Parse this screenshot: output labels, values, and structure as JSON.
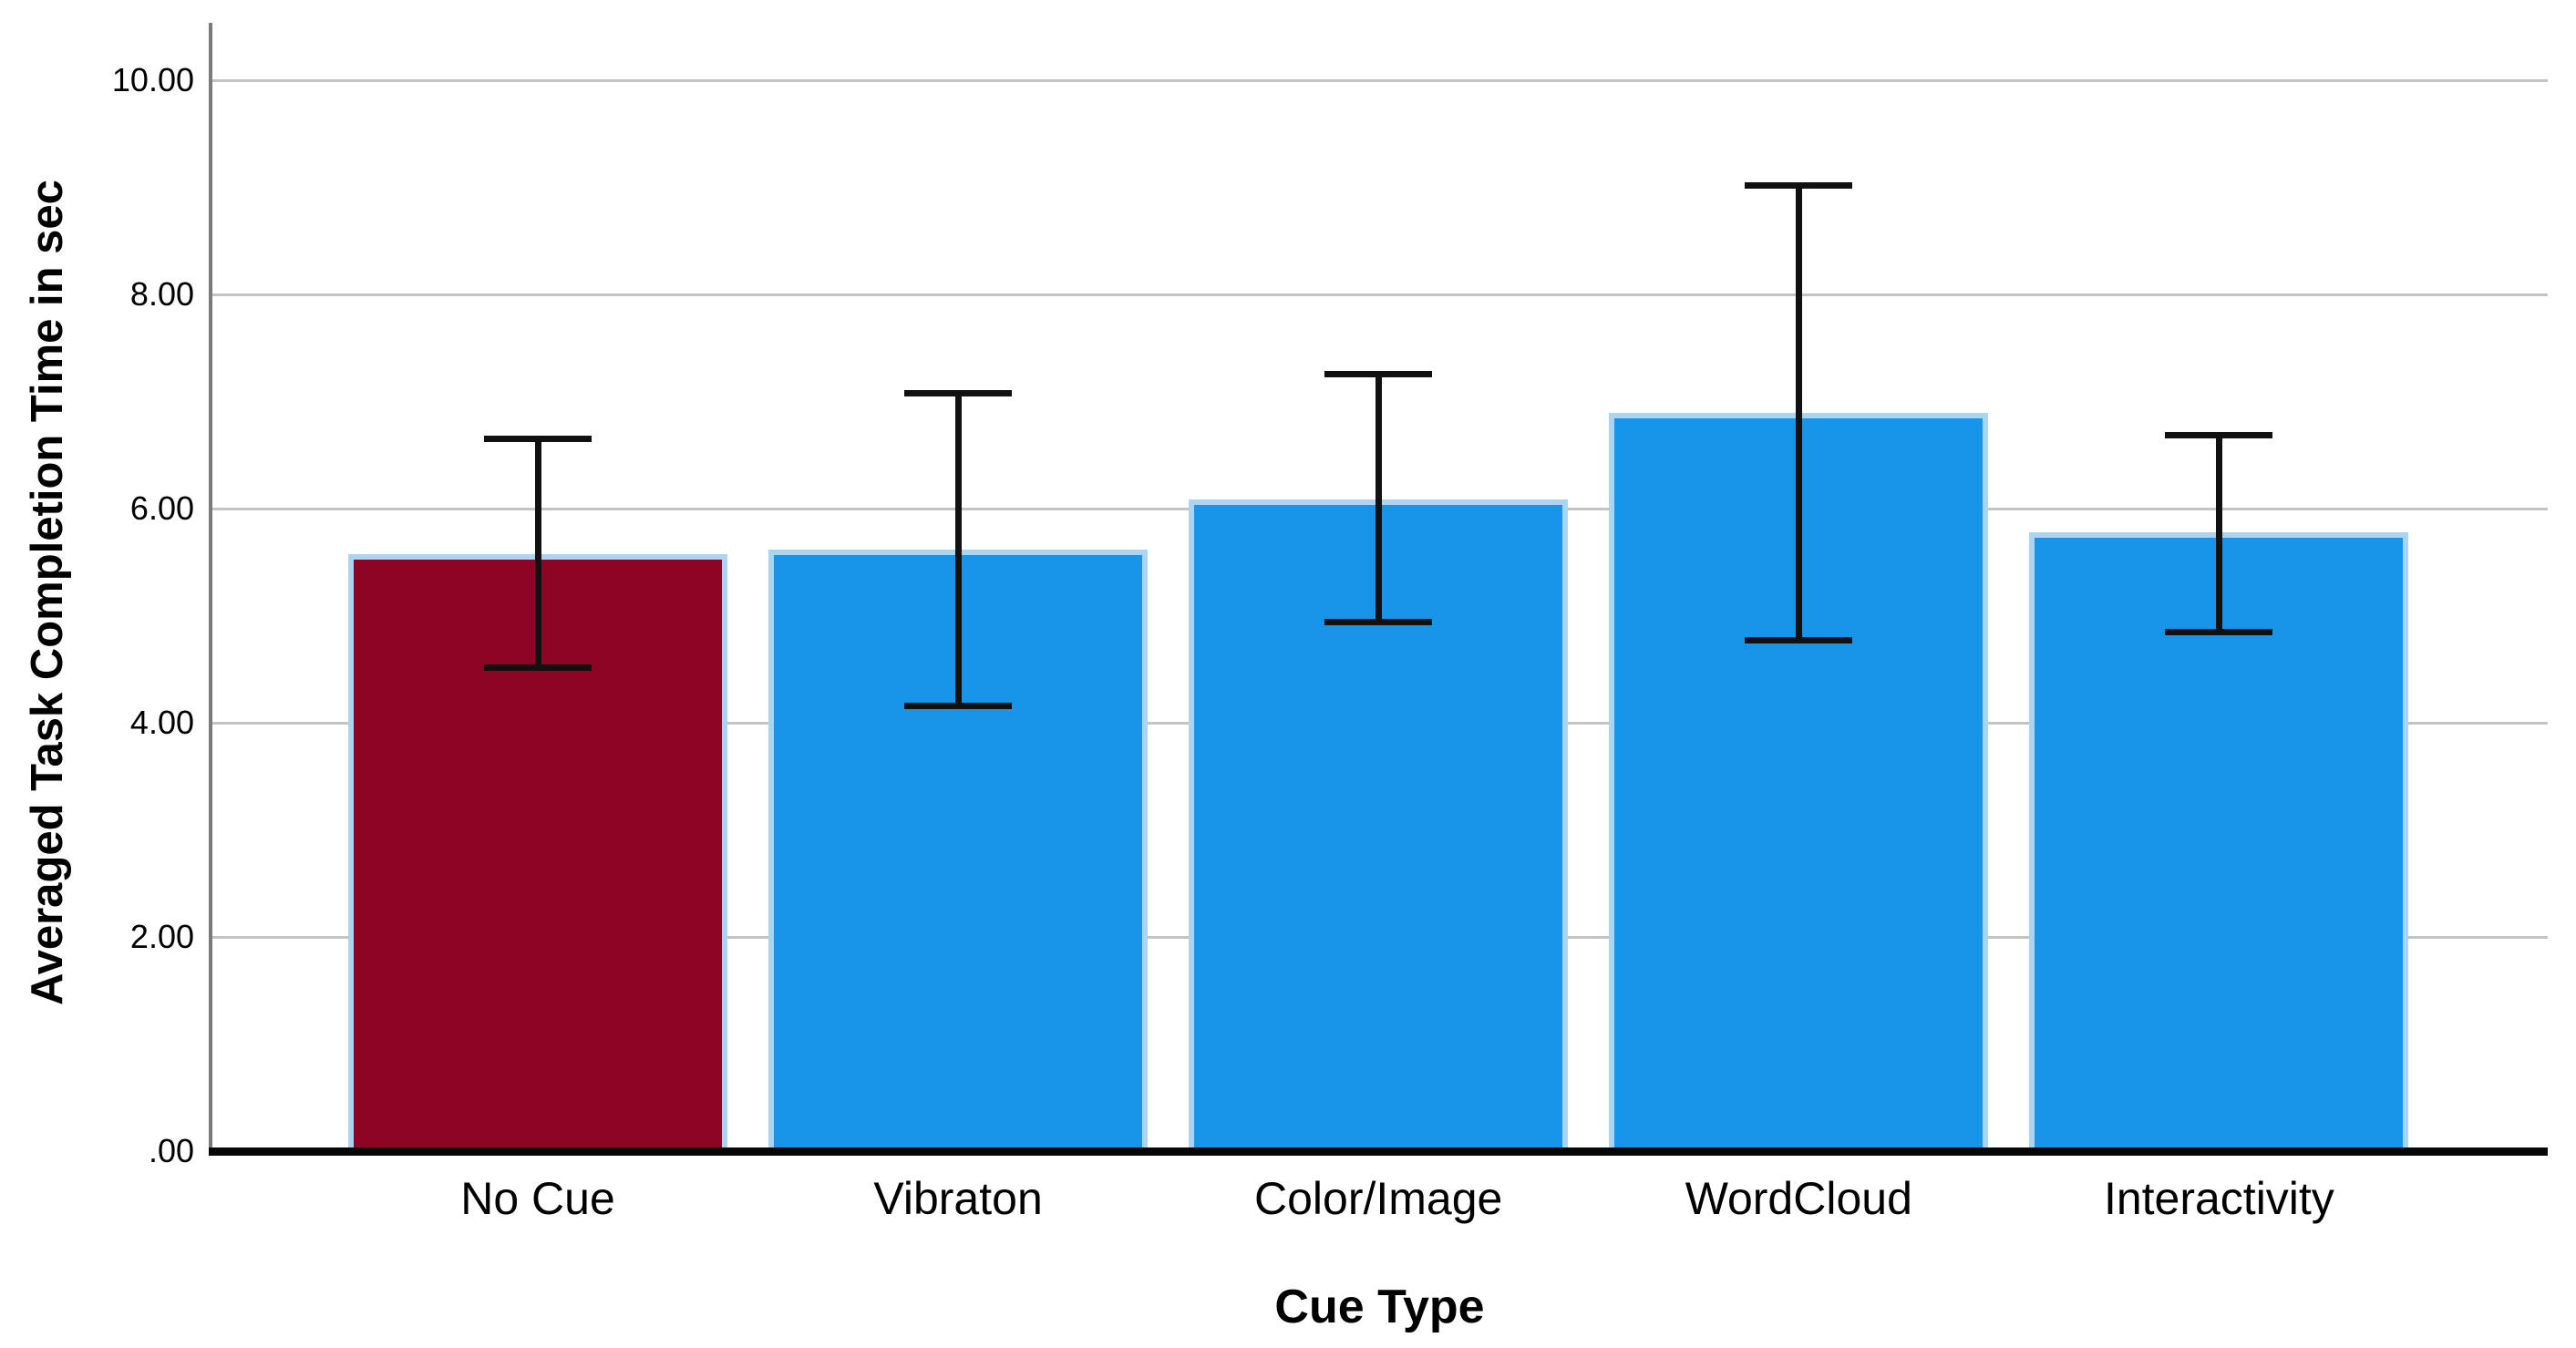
{
  "chart_data": {
    "type": "bar",
    "title": "",
    "xlabel": "Cue Type",
    "ylabel": "Averaged Task Completion Time in sec",
    "categories": [
      "No Cue",
      "Vibraton",
      "Color/Image",
      "WordCloud",
      "Interactivity"
    ],
    "series": [
      {
        "name": "Averaged Task Completion Time in sec",
        "values": [
          5.58,
          5.62,
          6.09,
          6.9,
          5.78
        ],
        "error_high": [
          6.65,
          7.08,
          7.26,
          9.02,
          6.69
        ],
        "error_low": [
          4.52,
          4.16,
          4.94,
          4.77,
          4.85
        ]
      }
    ],
    "bar_colors": [
      "#8d0424",
      "#1894e9",
      "#1894e9",
      "#1894e9",
      "#1894e9"
    ],
    "bar_border_color": "#abd4f2",
    "error_bar_color": "#111111",
    "gridline_color": "#c4c4c4",
    "axis_line_color": "#7a7a7a",
    "baseline_color": "#070707",
    "ylim": [
      0,
      10.54
    ],
    "yticks": {
      "values": [
        0,
        2,
        4,
        6,
        8,
        10
      ],
      "labels": [
        ".00",
        "2.00",
        "4.00",
        "6.00",
        "8.00",
        "10.00"
      ]
    },
    "grid": true,
    "legend": "none"
  }
}
